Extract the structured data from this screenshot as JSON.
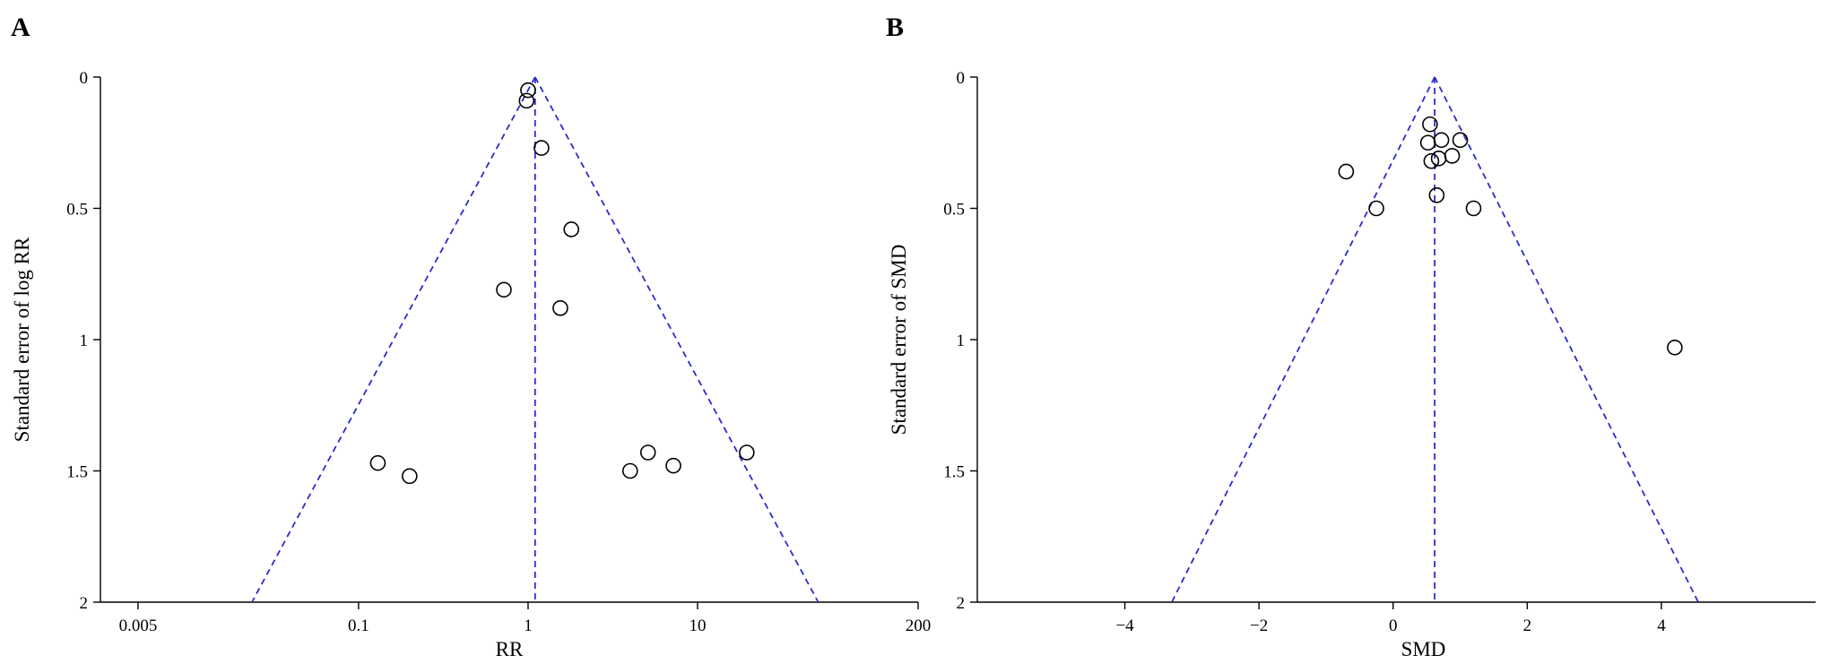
{
  "chart_data": [
    {
      "type": "scatter",
      "subtype": "funnel",
      "panel_label": "A",
      "xlabel": "RR",
      "ylabel": "Standard error of log RR",
      "x_scale": "log",
      "xlim": [
        0.003,
        200
      ],
      "ylim": [
        0,
        2
      ],
      "y_inverted": true,
      "x_ticks": [
        0.005,
        0.1,
        1,
        10,
        200
      ],
      "x_tick_labels": [
        "0.005",
        "0.1",
        "1",
        "10",
        "200"
      ],
      "y_ticks": [
        0,
        0.5,
        1,
        1.5,
        2
      ],
      "y_tick_labels": [
        "0",
        "0.5",
        "1",
        "1.5",
        "2"
      ],
      "pooled_estimate": 1.1,
      "funnel_bottom_x": [
        0.0235,
        51.5
      ],
      "funnel_color": "#2b2bd0",
      "points": [
        {
          "x": 1.0,
          "y": 0.05
        },
        {
          "x": 0.98,
          "y": 0.09
        },
        {
          "x": 1.2,
          "y": 0.27
        },
        {
          "x": 1.8,
          "y": 0.58
        },
        {
          "x": 0.72,
          "y": 0.81
        },
        {
          "x": 1.55,
          "y": 0.88
        },
        {
          "x": 0.13,
          "y": 1.47
        },
        {
          "x": 0.2,
          "y": 1.52
        },
        {
          "x": 4.0,
          "y": 1.5
        },
        {
          "x": 5.1,
          "y": 1.43
        },
        {
          "x": 7.2,
          "y": 1.48
        },
        {
          "x": 19.5,
          "y": 1.43
        }
      ]
    },
    {
      "type": "scatter",
      "subtype": "funnel",
      "panel_label": "B",
      "xlabel": "SMD",
      "ylabel": "Standard error of SMD",
      "x_scale": "linear",
      "xlim": [
        -6.2,
        6.3
      ],
      "ylim": [
        0,
        2
      ],
      "y_inverted": true,
      "x_ticks": [
        -4,
        -2,
        0,
        2,
        4
      ],
      "x_tick_labels": [
        "−4",
        "−2",
        "0",
        "2",
        "4"
      ],
      "y_ticks": [
        0,
        0.5,
        1,
        1.5,
        2
      ],
      "y_tick_labels": [
        "0",
        "0.5",
        "1",
        "1.5",
        "2"
      ],
      "pooled_estimate": 0.62,
      "funnel_bottom_x": [
        -3.3,
        4.55
      ],
      "funnel_color": "#2b2bd0",
      "points": [
        {
          "x": 0.55,
          "y": 0.18
        },
        {
          "x": 0.52,
          "y": 0.25
        },
        {
          "x": 0.72,
          "y": 0.24
        },
        {
          "x": 1.0,
          "y": 0.24
        },
        {
          "x": 0.88,
          "y": 0.3
        },
        {
          "x": 0.68,
          "y": 0.31
        },
        {
          "x": 0.57,
          "y": 0.32
        },
        {
          "x": -0.7,
          "y": 0.36
        },
        {
          "x": -0.25,
          "y": 0.5
        },
        {
          "x": 0.65,
          "y": 0.45
        },
        {
          "x": 1.2,
          "y": 0.5
        },
        {
          "x": 4.2,
          "y": 1.03
        }
      ]
    }
  ]
}
